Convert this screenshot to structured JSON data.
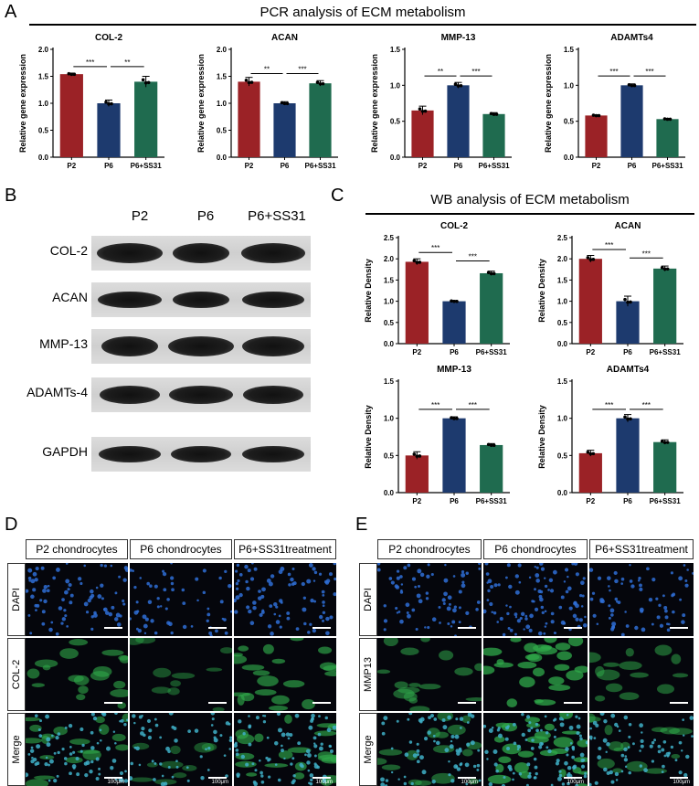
{
  "panels": {
    "a": "A",
    "b": "B",
    "c": "C",
    "d": "D",
    "e": "E"
  },
  "sections": {
    "pcr_title": "PCR analysis of ECM metabolism",
    "wb_title": "WB analysis of ECM metabolism"
  },
  "blot": {
    "lanes": [
      "P2",
      "P6",
      "P6+SS31"
    ],
    "rows": [
      "COL-2",
      "ACAN",
      "MMP-13",
      "ADAMTs-4",
      "GAPDH"
    ]
  },
  "colors": {
    "P2": "#9b2226",
    "P6": "#1d3a6e",
    "P6+SS31": "#1f6b4f"
  },
  "chart_data": [
    {
      "type": "bar",
      "title": "COL-2",
      "ylabel": "Relative gene expression",
      "categories": [
        "P2",
        "P6",
        "P6+SS31"
      ],
      "values": [
        1.54,
        1.0,
        1.4
      ],
      "errors": [
        0.02,
        0.06,
        0.1
      ],
      "ylim": [
        0,
        2.0
      ],
      "yticks": [
        "0.0",
        "0.5",
        "1.0",
        "1.5",
        "2.0"
      ],
      "sig": [
        {
          "from": 0,
          "to": 1,
          "label": "***",
          "y": 1.68
        },
        {
          "from": 1,
          "to": 2,
          "label": "**",
          "y": 1.68
        }
      ]
    },
    {
      "type": "bar",
      "title": "ACAN",
      "ylabel": "Relative gene expression",
      "categories": [
        "P2",
        "P6",
        "P6+SS31"
      ],
      "values": [
        1.4,
        1.0,
        1.37
      ],
      "errors": [
        0.08,
        0.03,
        0.05
      ],
      "ylim": [
        0,
        2.0
      ],
      "yticks": [
        "0.0",
        "0.5",
        "1.0",
        "1.5",
        "2.0"
      ],
      "sig": [
        {
          "from": 0,
          "to": 1,
          "label": "**",
          "y": 1.55
        },
        {
          "from": 1,
          "to": 2,
          "label": "***",
          "y": 1.55
        }
      ]
    },
    {
      "type": "bar",
      "title": "MMP-13",
      "ylabel": "Relative gene expression",
      "categories": [
        "P2",
        "P6",
        "P6+SS31"
      ],
      "values": [
        0.65,
        1.0,
        0.6
      ],
      "errors": [
        0.06,
        0.04,
        0.02
      ],
      "ylim": [
        0,
        1.5
      ],
      "yticks": [
        "0.0",
        "0.5",
        "1.0",
        "1.5"
      ],
      "sig": [
        {
          "from": 0,
          "to": 1,
          "label": "**",
          "y": 1.13
        },
        {
          "from": 1,
          "to": 2,
          "label": "***",
          "y": 1.13
        }
      ]
    },
    {
      "type": "bar",
      "title": "ADAMTs4",
      "ylabel": "Relative gene expression",
      "categories": [
        "P2",
        "P6",
        "P6+SS31"
      ],
      "values": [
        0.58,
        1.0,
        0.53
      ],
      "errors": [
        0.01,
        0.02,
        0.01
      ],
      "ylim": [
        0,
        1.5
      ],
      "yticks": [
        "0.0",
        "0.5",
        "1.0",
        "1.5"
      ],
      "sig": [
        {
          "from": 0,
          "to": 1,
          "label": "***",
          "y": 1.13
        },
        {
          "from": 1,
          "to": 2,
          "label": "***",
          "y": 1.13
        }
      ]
    },
    {
      "type": "bar",
      "title": "COL-2",
      "ylabel": "Relative Density",
      "categories": [
        "P2",
        "P6",
        "P6+SS31"
      ],
      "values": [
        1.93,
        1.0,
        1.66
      ],
      "errors": [
        0.07,
        0.02,
        0.05
      ],
      "ylim": [
        0,
        2.5
      ],
      "yticks": [
        "0.0",
        "0.5",
        "1.0",
        "1.5",
        "2.0",
        "2.5"
      ],
      "sig": [
        {
          "from": 0,
          "to": 1,
          "label": "***",
          "y": 2.15
        },
        {
          "from": 1,
          "to": 2,
          "label": "***",
          "y": 1.95
        }
      ]
    },
    {
      "type": "bar",
      "title": "ACAN",
      "ylabel": "Relative Density",
      "categories": [
        "P2",
        "P6",
        "P6+SS31"
      ],
      "values": [
        2.0,
        1.0,
        1.77
      ],
      "errors": [
        0.08,
        0.12,
        0.06
      ],
      "ylim": [
        0,
        2.5
      ],
      "yticks": [
        "0.0",
        "0.5",
        "1.0",
        "1.5",
        "2.0",
        "2.5"
      ],
      "sig": [
        {
          "from": 0,
          "to": 1,
          "label": "***",
          "y": 2.22
        },
        {
          "from": 1,
          "to": 2,
          "label": "***",
          "y": 2.02
        }
      ]
    },
    {
      "type": "bar",
      "title": "MMP-13",
      "ylabel": "Relative Density",
      "categories": [
        "P2",
        "P6",
        "P6+SS31"
      ],
      "values": [
        0.5,
        1.0,
        0.64
      ],
      "errors": [
        0.05,
        0.02,
        0.02
      ],
      "ylim": [
        0,
        1.5
      ],
      "yticks": [
        "0.0",
        "0.5",
        "1.0",
        "1.5"
      ],
      "sig": [
        {
          "from": 0,
          "to": 1,
          "label": "***",
          "y": 1.12
        },
        {
          "from": 1,
          "to": 2,
          "label": "***",
          "y": 1.12
        }
      ]
    },
    {
      "type": "bar",
      "title": "ADAMTs4",
      "ylabel": "Relative Density",
      "categories": [
        "P2",
        "P6",
        "P6+SS31"
      ],
      "values": [
        0.53,
        1.0,
        0.68
      ],
      "errors": [
        0.04,
        0.05,
        0.03
      ],
      "ylim": [
        0,
        1.5
      ],
      "yticks": [
        "0.0",
        "0.5",
        "1.0",
        "1.5"
      ],
      "sig": [
        {
          "from": 0,
          "to": 1,
          "label": "***",
          "y": 1.12
        },
        {
          "from": 1,
          "to": 2,
          "label": "***",
          "y": 1.12
        }
      ]
    }
  ],
  "if_d": {
    "columns": [
      "P2 chondrocytes",
      "P6 chondrocytes",
      "P6+SS31treatment"
    ],
    "rows": [
      "DAPI",
      "COL-2",
      "Merge"
    ],
    "scale": "100μm"
  },
  "if_e": {
    "columns": [
      "P2 chondrocytes",
      "P6 chondrocytes",
      "P6+SS31treatment"
    ],
    "rows": [
      "DAPI",
      "MMP13",
      "Merge"
    ],
    "scale": "100μm"
  }
}
